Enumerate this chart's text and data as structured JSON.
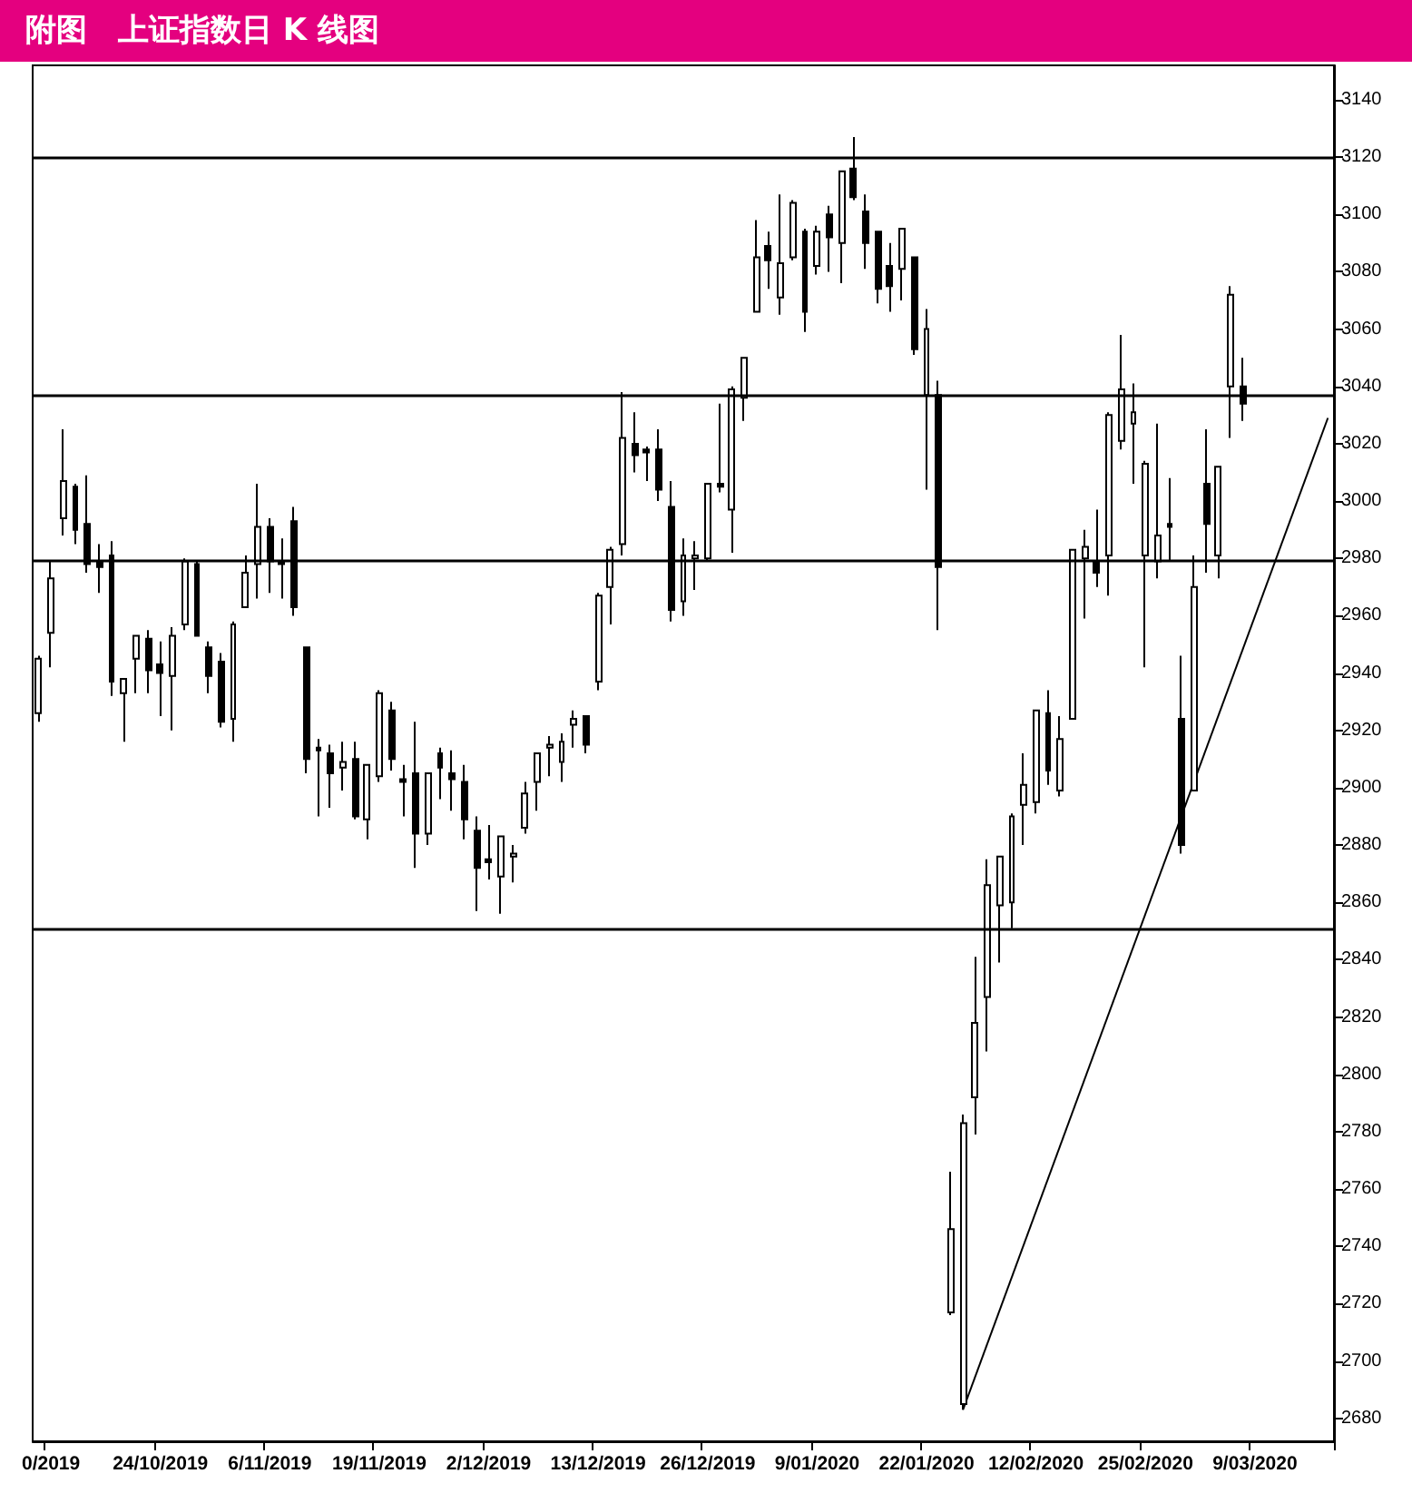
{
  "chart_data": {
    "type": "candlestick",
    "title": "附图　上证指数日 K 线图",
    "color": "#000000",
    "categories": [
      null,
      "0/2019",
      null,
      null,
      null,
      null,
      null,
      null,
      null,
      null,
      "24/10/2019",
      null,
      null,
      null,
      null,
      null,
      null,
      null,
      null,
      "6/11/2019",
      null,
      null,
      null,
      null,
      null,
      null,
      null,
      null,
      "19/11/2019",
      null,
      null,
      null,
      null,
      null,
      null,
      null,
      null,
      "2/12/2019",
      null,
      null,
      null,
      null,
      null,
      null,
      null,
      null,
      "13/12/2019",
      null,
      null,
      null,
      null,
      null,
      null,
      null,
      null,
      "26/12/2019",
      null,
      null,
      null,
      null,
      null,
      null,
      null,
      null,
      "9/01/2020",
      null,
      null,
      null,
      null,
      null,
      null,
      null,
      null,
      "22/01/2020",
      null,
      null,
      null,
      null,
      null,
      null,
      null,
      null,
      "12/02/2020",
      null,
      null,
      null,
      null,
      null,
      null,
      null,
      null,
      "25/02/2020",
      null,
      null,
      null,
      null,
      null,
      null,
      null,
      null,
      "9/03/2020",
      null,
      null,
      null,
      null,
      null,
      null
    ],
    "ohlc": [
      [
        2926,
        2946,
        2923,
        2945
      ],
      [
        2954,
        2979,
        2942,
        2973
      ],
      [
        2994,
        3025,
        2988,
        3007
      ],
      [
        3005,
        3006,
        2985,
        2990
      ],
      [
        2992,
        3009,
        2975,
        2978
      ],
      [
        2979,
        2985,
        2968,
        2977
      ],
      [
        2981,
        2986,
        2932,
        2937
      ],
      [
        2933,
        2938,
        2916,
        2938
      ],
      [
        2945,
        2953,
        2933,
        2953
      ],
      [
        2952,
        2955,
        2933,
        2941
      ],
      [
        2943,
        2951,
        2925,
        2940
      ],
      [
        2939,
        2956,
        2920,
        2953
      ],
      [
        2957,
        2980,
        2955,
        2979
      ],
      [
        2978,
        2979,
        2953,
        2953
      ],
      [
        2949,
        2951,
        2933,
        2939
      ],
      [
        2944,
        2947,
        2921,
        2923
      ],
      [
        2924,
        2958,
        2916,
        2957
      ],
      [
        2963,
        2981,
        2963,
        2975
      ],
      [
        2978,
        3006,
        2966,
        2991
      ],
      [
        2991,
        2994,
        2968,
        2979
      ],
      [
        2979,
        2987,
        2966,
        2978
      ],
      [
        2993,
        2998,
        2960,
        2963
      ],
      [
        2949,
        2949,
        2905,
        2910
      ],
      [
        2914,
        2917,
        2890,
        2913
      ],
      [
        2912,
        2915,
        2893,
        2905
      ],
      [
        2907,
        2916,
        2899,
        2909
      ],
      [
        2910,
        2916,
        2889,
        2890
      ],
      [
        2889,
        2908,
        2882,
        2908
      ],
      [
        2904,
        2934,
        2902,
        2933
      ],
      [
        2927,
        2930,
        2906,
        2910
      ],
      [
        2903,
        2908,
        2890,
        2902
      ],
      [
        2905,
        2923,
        2872,
        2884
      ],
      [
        2884,
        2905,
        2880,
        2905
      ],
      [
        2912,
        2914,
        2896,
        2907
      ],
      [
        2905,
        2913,
        2892,
        2903
      ],
      [
        2902,
        2908,
        2882,
        2889
      ],
      [
        2885,
        2890,
        2857,
        2872
      ],
      [
        2875,
        2887,
        2868,
        2874
      ],
      [
        2869,
        2883,
        2856,
        2883
      ],
      [
        2876,
        2880,
        2867,
        2877
      ],
      [
        2886,
        2902,
        2884,
        2898
      ],
      [
        2902,
        2912,
        2892,
        2912
      ],
      [
        2914,
        2918,
        2904,
        2915
      ],
      [
        2909,
        2919,
        2902,
        2916
      ],
      [
        2922,
        2927,
        2914,
        2924
      ],
      [
        2925,
        2925,
        2912,
        2915
      ],
      [
        2937,
        2968,
        2934,
        2967
      ],
      [
        2970,
        2984,
        2957,
        2983
      ],
      [
        2985,
        3038,
        2981,
        3022
      ],
      [
        3020,
        3031,
        3010,
        3016
      ],
      [
        3018,
        3019,
        3007,
        3017
      ],
      [
        3018,
        3025,
        3000,
        3004
      ],
      [
        2998,
        3007,
        2958,
        2962
      ],
      [
        2965,
        2987,
        2960,
        2981
      ],
      [
        2980,
        2986,
        2969,
        2981
      ],
      [
        2980,
        3006,
        2979,
        3006
      ],
      [
        3006,
        3034,
        3003,
        3005
      ],
      [
        2997,
        3040,
        2982,
        3039
      ],
      [
        3036,
        3050,
        3028,
        3050
      ],
      [
        3066,
        3098,
        3066,
        3085
      ],
      [
        3089,
        3094,
        3074,
        3084
      ],
      [
        3071,
        3107,
        3065,
        3083
      ],
      [
        3085,
        3105,
        3084,
        3104
      ],
      [
        3094,
        3095,
        3059,
        3066
      ],
      [
        3082,
        3096,
        3079,
        3094
      ],
      [
        3100,
        3103,
        3080,
        3092
      ],
      [
        3090,
        3115,
        3076,
        3115
      ],
      [
        3116,
        3127,
        3105,
        3106
      ],
      [
        3101,
        3107,
        3081,
        3090
      ],
      [
        3094,
        3094,
        3069,
        3074
      ],
      [
        3082,
        3090,
        3066,
        3075
      ],
      [
        3081,
        3095,
        3070,
        3095
      ],
      [
        3085,
        3085,
        3051,
        3053
      ],
      [
        3037,
        3067,
        3004,
        3060
      ],
      [
        3037,
        3042,
        2955,
        2977
      ],
      [
        2717,
        2766,
        2716,
        2746
      ],
      [
        2685,
        2786,
        2683,
        2783
      ],
      [
        2792,
        2841,
        2779,
        2818
      ],
      [
        2827,
        2875,
        2808,
        2866
      ],
      [
        2859,
        2876,
        2839,
        2876
      ],
      [
        2860,
        2891,
        2851,
        2890
      ],
      [
        2894,
        2912,
        2880,
        2901
      ],
      [
        2895,
        2927,
        2891,
        2927
      ],
      [
        2926,
        2934,
        2901,
        2906
      ],
      [
        2899,
        2925,
        2897,
        2917
      ],
      [
        2924,
        2983,
        2924,
        2983
      ],
      [
        2980,
        2990,
        2959,
        2984
      ],
      [
        2979,
        2997,
        2970,
        2975
      ],
      [
        2981,
        3031,
        2967,
        3030
      ],
      [
        3021,
        3058,
        3018,
        3039
      ],
      [
        3027,
        3041,
        3006,
        3031
      ],
      [
        2981,
        3014,
        2942,
        3013
      ],
      [
        2979,
        3027,
        2973,
        2988
      ],
      [
        2992,
        3008,
        2979,
        2991
      ],
      [
        2924,
        2946,
        2877,
        2880
      ],
      [
        2899,
        2981,
        2899,
        2970
      ],
      [
        3006,
        3025,
        2975,
        2992
      ],
      [
        2981,
        3012,
        2973,
        3012
      ],
      [
        3040,
        3075,
        3022,
        3072
      ],
      [
        3040,
        3050,
        3028,
        3034
      ],
      null,
      null,
      null,
      null,
      null,
      null,
      null
    ],
    "series": [
      {
        "type": "line",
        "color": "#000000",
        "marker": "none",
        "line_style": "solid",
        "values": [
          null,
          null,
          null,
          null,
          null,
          null,
          null,
          null,
          null,
          null,
          null,
          null,
          null,
          null,
          null,
          null,
          null,
          null,
          null,
          null,
          null,
          null,
          null,
          null,
          null,
          null,
          null,
          null,
          null,
          null,
          null,
          null,
          null,
          null,
          null,
          null,
          null,
          null,
          null,
          null,
          null,
          null,
          null,
          null,
          null,
          null,
          null,
          null,
          null,
          null,
          null,
          null,
          null,
          null,
          null,
          null,
          null,
          null,
          null,
          null,
          null,
          null,
          null,
          null,
          null,
          null,
          null,
          null,
          null,
          null,
          null,
          null,
          null,
          null,
          null,
          null,
          2683,
          null,
          null,
          null,
          null,
          null,
          null,
          null,
          null,
          null,
          null,
          null,
          null,
          null,
          null,
          null,
          null,
          null,
          null,
          null,
          null,
          null,
          null,
          null,
          null,
          null,
          null,
          null,
          null,
          null,
          3029
        ]
      }
    ],
    "ref_lines": [
      {
        "axis": "y",
        "value": 3120,
        "color": "#000000"
      },
      {
        "axis": "y",
        "value": 3037,
        "color": "#000000"
      },
      {
        "axis": "y",
        "value": 2979,
        "color": "#000000"
      },
      {
        "axis": "y",
        "value": 2851,
        "color": "#000000"
      }
    ],
    "ylim": [
      2672,
      3152
    ],
    "yticks": [
      2680,
      2700,
      2720,
      2740,
      2760,
      2780,
      2800,
      2820,
      2840,
      2860,
      2880,
      2900,
      2920,
      2940,
      2960,
      2980,
      3000,
      3020,
      3040,
      3060,
      3080,
      3100,
      3120,
      3140
    ],
    "grid": false,
    "legend": false
  }
}
